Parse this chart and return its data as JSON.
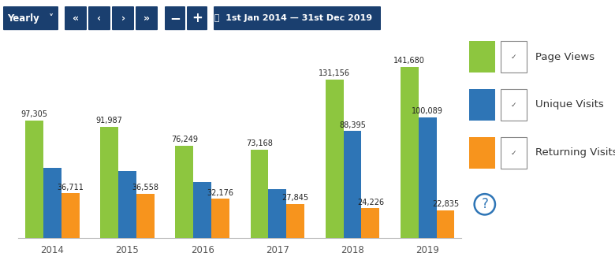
{
  "years": [
    "2014",
    "2015",
    "2016",
    "2017",
    "2018",
    "2019"
  ],
  "page_views": [
    97305,
    91987,
    76249,
    73168,
    131156,
    141680
  ],
  "unique_visits": [
    58000,
    55000,
    46000,
    40000,
    88395,
    100089
  ],
  "returning_visits": [
    36711,
    36558,
    32176,
    27845,
    24226,
    22835
  ],
  "page_views_labels": [
    "97,305",
    "91,987",
    "76,249",
    "73,168",
    "131,156",
    "141,680"
  ],
  "unique_visits_labels": [
    "",
    "",
    "",
    "",
    "88,395",
    "100,089"
  ],
  "returning_visits_labels": [
    "36,711",
    "36,558",
    "32,176",
    "27,845",
    "24,226",
    "22,835"
  ],
  "color_green": "#8DC63F",
  "color_blue": "#2E75B6",
  "color_orange": "#F7941D",
  "background": "#ffffff",
  "grid_color": "#e0e0e0",
  "bar_width": 0.24,
  "ylim": [
    0,
    160000
  ],
  "label_fontsize": 7.0,
  "tick_fontsize": 8.5,
  "legend_fontsize": 9.5,
  "ui_bg": "#1a3f6f",
  "ui_text": "#ffffff"
}
